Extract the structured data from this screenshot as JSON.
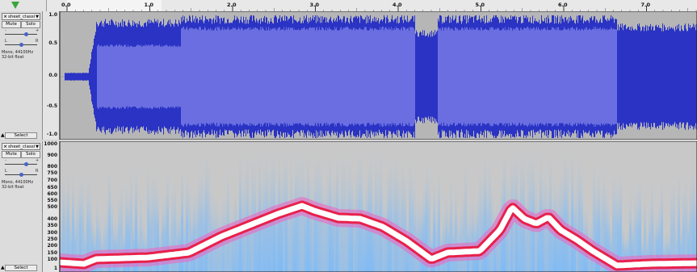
{
  "ruler": {
    "ticks": [
      {
        "label": "0.0",
        "major": true
      },
      {
        "label": "1.0",
        "major": true
      },
      {
        "label": "2.0",
        "major": true
      },
      {
        "label": "3.0",
        "major": true
      },
      {
        "label": "4.0",
        "major": true
      },
      {
        "label": "5.0",
        "major": true
      },
      {
        "label": "6.0",
        "major": true
      },
      {
        "label": "7.0",
        "major": true
      }
    ],
    "play_icon": "play-triangle-icon",
    "play_color": "#3aa63a"
  },
  "tracks": [
    {
      "name": "sheet_classi",
      "mute_label": "Mute",
      "solo_label": "Solo",
      "gain_minus": "-",
      "gain_plus": "+",
      "pan_left": "L",
      "pan_right": "R",
      "info_rate": "Mono, 44100Hz",
      "info_format": "32-bit float",
      "select_label": "Select",
      "view": "waveform",
      "scale_labels": [
        "1.0",
        "0.5",
        "0.0",
        "-0.5",
        "-1.0"
      ]
    },
    {
      "name": "sheet_classi",
      "mute_label": "Mute",
      "solo_label": "Solo",
      "gain_minus": "-",
      "gain_plus": "+",
      "pan_left": "L",
      "pan_right": "R",
      "info_rate": "Mono, 44100Hz",
      "info_format": "32-bit float",
      "select_label": "Select",
      "view": "spectrogram",
      "scale_labels": [
        "1000",
        "900",
        "800",
        "750",
        "700",
        "650",
        "600",
        "550",
        "500",
        "400",
        "350",
        "300",
        "250",
        "200",
        "150",
        "100",
        "1"
      ]
    }
  ],
  "colors": {
    "wave_fill": "#6a6ee0",
    "wave_edge": "#2a33c4",
    "wave_bg": "#b6b6b6",
    "spectro_peak": "#ffffff",
    "spectro_high": "#e8204a",
    "spectro_mid": "#f060c0",
    "spectro_low": "#70b8ff"
  }
}
